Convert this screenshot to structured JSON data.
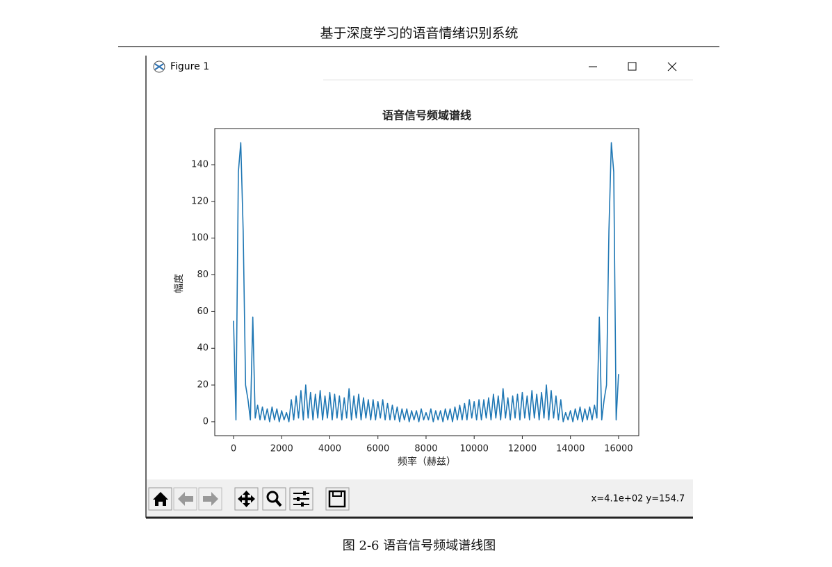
{
  "header": {
    "title": "基于深度学习的语音情绪识别系统"
  },
  "window": {
    "title": "Figure 1",
    "status": "x=4.1e+02 y=154.7"
  },
  "chart_data": {
    "type": "line",
    "title": "语音信号频域谱线",
    "x_label": "频率（赫兹）",
    "y_label": "幅度",
    "color": "#1f77b4",
    "x": [
      0,
      100,
      200,
      300,
      400,
      500,
      600,
      700,
      800,
      900,
      1000,
      1100,
      1200,
      1300,
      1400,
      1500,
      1600,
      1700,
      1800,
      1900,
      2000,
      2100,
      2200,
      2300,
      2400,
      2500,
      2600,
      2700,
      2800,
      2900,
      3000,
      3100,
      3200,
      3300,
      3400,
      3500,
      3600,
      3700,
      3800,
      3900,
      4000,
      4100,
      4200,
      4300,
      4400,
      4500,
      4600,
      4700,
      4800,
      4900,
      5000,
      5100,
      5200,
      5300,
      5400,
      5500,
      5600,
      5700,
      5800,
      5900,
      6000,
      6100,
      6200,
      6300,
      6400,
      6500,
      6600,
      6700,
      6800,
      6900,
      7000,
      7100,
      7200,
      7300,
      7400,
      7500,
      7600,
      7700,
      7800,
      7900,
      8000,
      8100,
      8200,
      8300,
      8400,
      8500,
      8600,
      8700,
      8800,
      8900,
      9000,
      9100,
      9200,
      9300,
      9400,
      9500,
      9600,
      9700,
      9800,
      9900,
      10000,
      10100,
      10200,
      10300,
      10400,
      10500,
      10600,
      10700,
      10800,
      10900,
      11000,
      11100,
      11200,
      11300,
      11400,
      11500,
      11600,
      11700,
      11800,
      11900,
      12000,
      12100,
      12200,
      12300,
      12400,
      12500,
      12600,
      12700,
      12800,
      12900,
      13000,
      13100,
      13200,
      13300,
      13400,
      13500,
      13600,
      13700,
      13800,
      13900,
      14000,
      14100,
      14200,
      14300,
      14400,
      14500,
      14600,
      14700,
      14800,
      14900,
      15000,
      15100,
      15200,
      15300,
      15400,
      15500,
      15600,
      15700,
      15800,
      15900,
      16000
    ],
    "values": [
      55,
      1,
      136,
      152,
      104,
      20,
      12,
      1,
      57,
      2,
      9,
      1,
      8,
      1,
      7,
      0,
      8,
      1,
      7,
      0,
      6,
      1,
      5,
      0,
      12,
      1,
      14,
      2,
      17,
      1,
      20,
      2,
      16,
      1,
      15,
      2,
      17,
      1,
      14,
      2,
      16,
      1,
      15,
      2,
      14,
      1,
      13,
      2,
      18,
      1,
      14,
      2,
      15,
      1,
      13,
      2,
      12,
      1,
      12,
      1,
      11,
      2,
      12,
      1,
      10,
      1,
      9,
      1,
      8,
      0,
      7,
      1,
      7,
      0,
      6,
      1,
      6,
      0,
      7,
      1,
      5,
      1,
      7,
      0,
      6,
      1,
      6,
      0,
      7,
      1,
      7,
      0,
      8,
      1,
      9,
      1,
      10,
      1,
      12,
      2,
      11,
      1,
      12,
      1,
      12,
      2,
      13,
      1,
      15,
      2,
      14,
      1,
      18,
      2,
      13,
      1,
      14,
      2,
      15,
      1,
      16,
      2,
      14,
      1,
      17,
      2,
      15,
      1,
      16,
      2,
      20,
      1,
      17,
      2,
      14,
      1,
      12,
      0,
      5,
      1,
      6,
      0,
      7,
      1,
      8,
      0,
      7,
      1,
      8,
      1,
      9,
      2,
      57,
      1,
      12,
      20,
      104,
      152,
      136,
      1,
      26
    ],
    "xlim": [
      -780,
      16840
    ],
    "ylim": [
      -7.6,
      159.7
    ],
    "xticks": [
      0,
      2000,
      4000,
      6000,
      8000,
      10000,
      12000,
      14000,
      16000
    ],
    "yticks": [
      0,
      20,
      40,
      60,
      80,
      100,
      120,
      140
    ]
  },
  "caption": "图 2-6 语音信号频域谱线图"
}
